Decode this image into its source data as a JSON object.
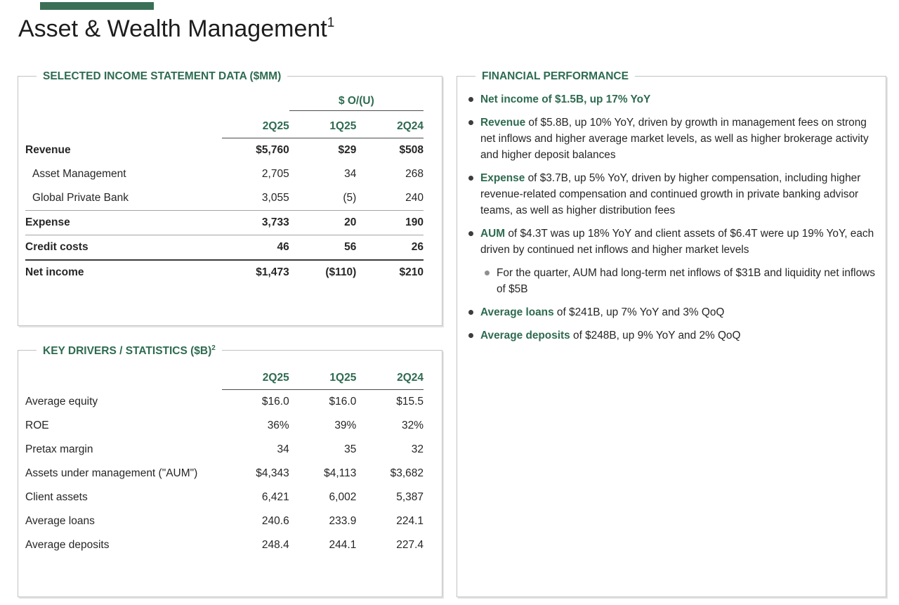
{
  "colors": {
    "accent_green": "#2e6b50",
    "accent_bar": "#3a6f56",
    "body_text": "#262626",
    "thin_rule": "#a4a4a4",
    "thick_rule": "#3a3a3a",
    "panel_border": "#c2c2c2",
    "sub_bullet_gray": "#8f8f8f"
  },
  "icons": {
    "bullet": "filled-circle",
    "sub_bullet": "filled-circle-gray"
  },
  "title": {
    "text": "Asset & Wealth Management",
    "superscript": "1"
  },
  "income_panel": {
    "title": "SELECTED INCOME STATEMENT DATA ($MM)",
    "ou_header": "$ O/(U)",
    "columns": [
      "2Q25",
      "1Q25",
      "2Q24"
    ],
    "rows": [
      {
        "label": "Revenue",
        "values": [
          "$5,760",
          "$29",
          "$508"
        ],
        "bold": true,
        "indent": false,
        "rule_below": ""
      },
      {
        "label": "Asset Management",
        "values": [
          "2,705",
          "34",
          "268"
        ],
        "bold": false,
        "indent": true,
        "rule_below": ""
      },
      {
        "label": "Global Private Bank",
        "values": [
          "3,055",
          "(5)",
          "240"
        ],
        "bold": false,
        "indent": true,
        "rule_below": "thin"
      },
      {
        "label": "Expense",
        "values": [
          "3,733",
          "20",
          "190"
        ],
        "bold": true,
        "indent": false,
        "rule_below": "thin"
      },
      {
        "label": "Credit costs",
        "values": [
          "46",
          "56",
          "26"
        ],
        "bold": true,
        "indent": false,
        "rule_below": "thick"
      },
      {
        "label": "Net income",
        "values": [
          "$1,473",
          "($110)",
          "$210"
        ],
        "bold": true,
        "indent": false,
        "rule_below": ""
      }
    ]
  },
  "drivers_panel": {
    "title": "KEY DRIVERS / STATISTICS ($B)",
    "superscript": "2",
    "columns": [
      "2Q25",
      "1Q25",
      "2Q24"
    ],
    "rows": [
      {
        "label": "Average equity",
        "values": [
          "$16.0",
          "$16.0",
          "$15.5"
        ]
      },
      {
        "label": "ROE",
        "values": [
          "36%",
          "39%",
          "32%"
        ]
      },
      {
        "label": "Pretax margin",
        "values": [
          "34",
          "35",
          "32"
        ]
      },
      {
        "label": "Assets under management (\"AUM\")",
        "values": [
          "$4,343",
          "$4,113",
          "$3,682"
        ]
      },
      {
        "label": "Client assets",
        "values": [
          "6,421",
          "6,002",
          "5,387"
        ]
      },
      {
        "label": "Average loans",
        "values": [
          "240.6",
          "233.9",
          "224.1"
        ]
      },
      {
        "label": "Average deposits",
        "values": [
          "248.4",
          "244.1",
          "227.4"
        ]
      }
    ]
  },
  "performance_panel": {
    "title": "FINANCIAL PERFORMANCE",
    "bullets": [
      {
        "level": 1,
        "lead": "Net income of $1.5B, up 17% YoY",
        "rest": ""
      },
      {
        "level": 1,
        "lead": "Revenue",
        "rest": " of $5.8B, up 10% YoY, driven by growth in management fees on strong net inflows and higher average market levels, as well as higher brokerage activity and higher deposit balances"
      },
      {
        "level": 1,
        "lead": "Expense",
        "rest": " of $3.7B, up 5% YoY, driven by higher compensation, including higher revenue-related compensation and continued growth in private banking advisor teams, as well as higher distribution fees"
      },
      {
        "level": 1,
        "lead": "AUM",
        "rest": " of $4.3T was up 18% YoY and client assets of $6.4T were up 19% YoY, each driven by continued net inflows and higher market levels"
      },
      {
        "level": 2,
        "lead": "",
        "rest": "For the quarter, AUM had long-term net inflows of $31B and liquidity net inflows of $5B"
      },
      {
        "level": 1,
        "lead": "Average loans",
        "rest": " of $241B, up 7% YoY and 3% QoQ"
      },
      {
        "level": 1,
        "lead": "Average deposits",
        "rest": " of $248B, up 9% YoY and 2% QoQ"
      }
    ]
  }
}
